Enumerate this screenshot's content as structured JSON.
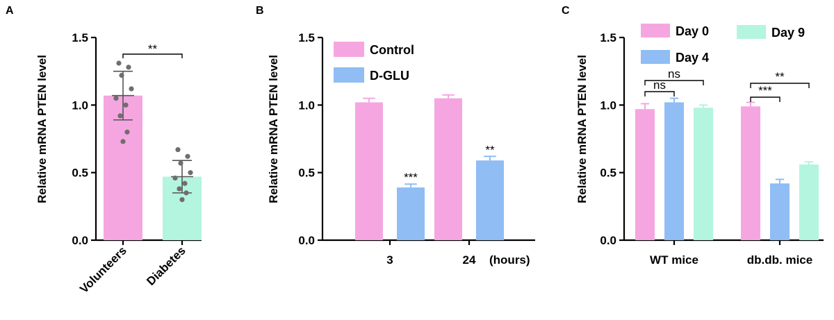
{
  "panel_labels": [
    "A",
    "B",
    "C"
  ],
  "colors": {
    "pink": "#f5a6e0",
    "blue": "#8fbdf4",
    "mint": "#b3f5df",
    "point": "#6e6e6e",
    "axis": "#000000"
  },
  "chart_data": [
    {
      "panel": "A",
      "type": "bar",
      "ylabel": "Relative mRNA PTEN level",
      "ylim": [
        0,
        1.5
      ],
      "yticks": [
        "0.0",
        "0.5",
        "1.0",
        "1.5"
      ],
      "categories": [
        "Volunteers",
        "Diabetes"
      ],
      "values": [
        1.07,
        0.47
      ],
      "errors": [
        0.18,
        0.12
      ],
      "bar_colors": [
        "pink",
        "mint"
      ],
      "points": [
        [
          1.31,
          1.28,
          1.22,
          1.12,
          1.05,
          1.0,
          0.92,
          0.8,
          0.73
        ],
        [
          0.67,
          0.62,
          0.57,
          0.5,
          0.46,
          0.42,
          0.38,
          0.35,
          0.3
        ]
      ],
      "annotations": [
        {
          "text": "**",
          "from": 0,
          "to": 1
        }
      ]
    },
    {
      "panel": "B",
      "type": "bar",
      "ylabel": "Relative mRNA PTEN level",
      "ylim": [
        0,
        1.5
      ],
      "yticks": [
        "0.0",
        "0.5",
        "1.0",
        "1.5"
      ],
      "categories": [
        "3",
        "24"
      ],
      "axis_suffix": "(hours)",
      "series": [
        {
          "name": "Control",
          "color": "pink",
          "values": [
            1.02,
            1.05
          ],
          "errors": [
            0.03,
            0.025
          ],
          "marks": [
            "",
            ""
          ]
        },
        {
          "name": "D-GLU",
          "color": "blue",
          "values": [
            0.39,
            0.59
          ],
          "errors": [
            0.025,
            0.03
          ],
          "marks": [
            "***",
            "**"
          ]
        }
      ],
      "legend": "top-left"
    },
    {
      "panel": "C",
      "type": "bar",
      "ylabel": "Relative mRNA PTEN level",
      "ylim": [
        0,
        1.5
      ],
      "yticks": [
        "0.0",
        "0.5",
        "1.0",
        "1.5"
      ],
      "categories": [
        "WT mice",
        "db.db. mice"
      ],
      "series": [
        {
          "name": "Day 0",
          "color": "pink",
          "values": [
            0.97,
            0.99
          ],
          "errors": [
            0.04,
            0.03
          ]
        },
        {
          "name": "Day 4",
          "color": "blue",
          "values": [
            1.02,
            0.42
          ],
          "errors": [
            0.03,
            0.03
          ]
        },
        {
          "name": "Day 9",
          "color": "mint",
          "values": [
            0.98,
            0.56
          ],
          "errors": [
            0.02,
            0.02
          ]
        }
      ],
      "brackets": [
        {
          "group": 0,
          "from": 0,
          "to": 1,
          "text": "ns",
          "level": 0
        },
        {
          "group": 0,
          "from": 0,
          "to": 2,
          "text": "ns",
          "level": 1
        },
        {
          "group": 1,
          "from": 0,
          "to": 1,
          "text": "***",
          "level": 0
        },
        {
          "group": 1,
          "from": 0,
          "to": 2,
          "text": "**",
          "level": 1
        }
      ],
      "legend": "top"
    }
  ]
}
